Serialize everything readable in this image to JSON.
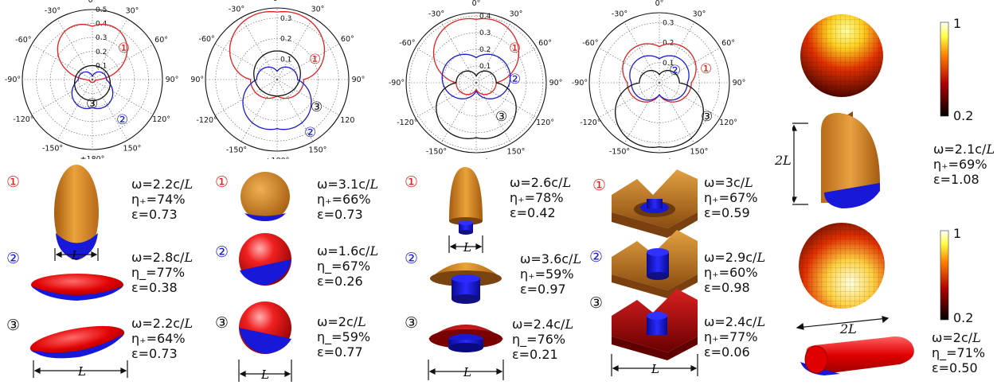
{
  "angle_labels": [
    "0°",
    "30°",
    "60°",
    "90°",
    "120°",
    "150°",
    "±180°",
    "-150°",
    "-120°",
    "-90°",
    "-60°",
    "-30°"
  ],
  "angle_labels_p2": [
    "0°",
    "30°",
    "60°",
    "90°",
    "120",
    "150°",
    "±180°",
    "-150°",
    "-120°",
    "-90°",
    "-60°",
    "-30°"
  ],
  "radial_ticks": {
    "p1": [
      "0.1",
      "0.2",
      "0.3",
      "0.4",
      "0.5"
    ],
    "p2": [
      "0.1",
      "0.2",
      "0.3"
    ],
    "p3": [
      "0.1",
      "0.2",
      "0.3",
      "0.4"
    ],
    "p4": [
      "0.1",
      "0.2",
      "0.3"
    ]
  },
  "markers": {
    "one": "①",
    "two": "②",
    "three": "③"
  },
  "dim_label": "L",
  "dim_label_2": "2L",
  "colorbars": [
    {
      "max": "1",
      "min": "0.2"
    },
    {
      "max": "1",
      "min": "0.2"
    }
  ],
  "columns": [
    {
      "rows": [
        {
          "omega": "ω=2.2c/",
          "unit": "L",
          "eta": "η₊=74%",
          "eps": "ε=0.73"
        },
        {
          "omega": "ω=2.8c/",
          "unit": "L",
          "eta": "η_=77%",
          "eps": "ε=0.38"
        },
        {
          "omega": "ω=2.2c/",
          "unit": "L",
          "eta": "η₊=64%",
          "eps": "ε=0.73"
        }
      ]
    },
    {
      "rows": [
        {
          "omega": "ω=3.1c/",
          "unit": "L",
          "eta": "η₊=66%",
          "eps": "ε=0.73"
        },
        {
          "omega": "ω=1.6c/",
          "unit": "L",
          "eta": "η_=67%",
          "eps": "ε=0.26"
        },
        {
          "omega": "ω=2c/",
          "unit": "L",
          "eta": "η_=59%",
          "eps": "ε=0.77"
        }
      ]
    },
    {
      "rows": [
        {
          "omega": "ω=2.6c/",
          "unit": "L",
          "eta": "η₊=78%",
          "eps": "ε=0.42"
        },
        {
          "omega": "ω=3.6c/",
          "unit": "L",
          "eta": "η₊=59%",
          "eps": "ε=0.97"
        },
        {
          "omega": "ω=2.4c/",
          "unit": "L",
          "eta": "η_=76%",
          "eps": "ε=0.21"
        }
      ]
    },
    {
      "rows": [
        {
          "omega": "ω=3c/",
          "unit": "L",
          "eta": "η₊=67%",
          "eps": "ε=0.59"
        },
        {
          "omega": "ω=2.9c/",
          "unit": "L",
          "eta": "η₊=60%",
          "eps": "ε=0.98"
        },
        {
          "omega": "ω=2.4c/",
          "unit": "L",
          "eta": "η₊=77%",
          "eps": "ε=0.06"
        }
      ]
    },
    {
      "rows": [
        {
          "omega": "ω=2.1c/",
          "unit": "L",
          "eta": "η₊=69%",
          "eps": "ε=1.08"
        },
        {
          "omega": "ω=2c/",
          "unit": "L",
          "eta": "η_=71%",
          "eps": "ε=0.50"
        }
      ]
    }
  ],
  "colors": {
    "red": "#e02020",
    "blue": "#1a1ad0",
    "orange": "#d9871f",
    "black": "#111111"
  }
}
